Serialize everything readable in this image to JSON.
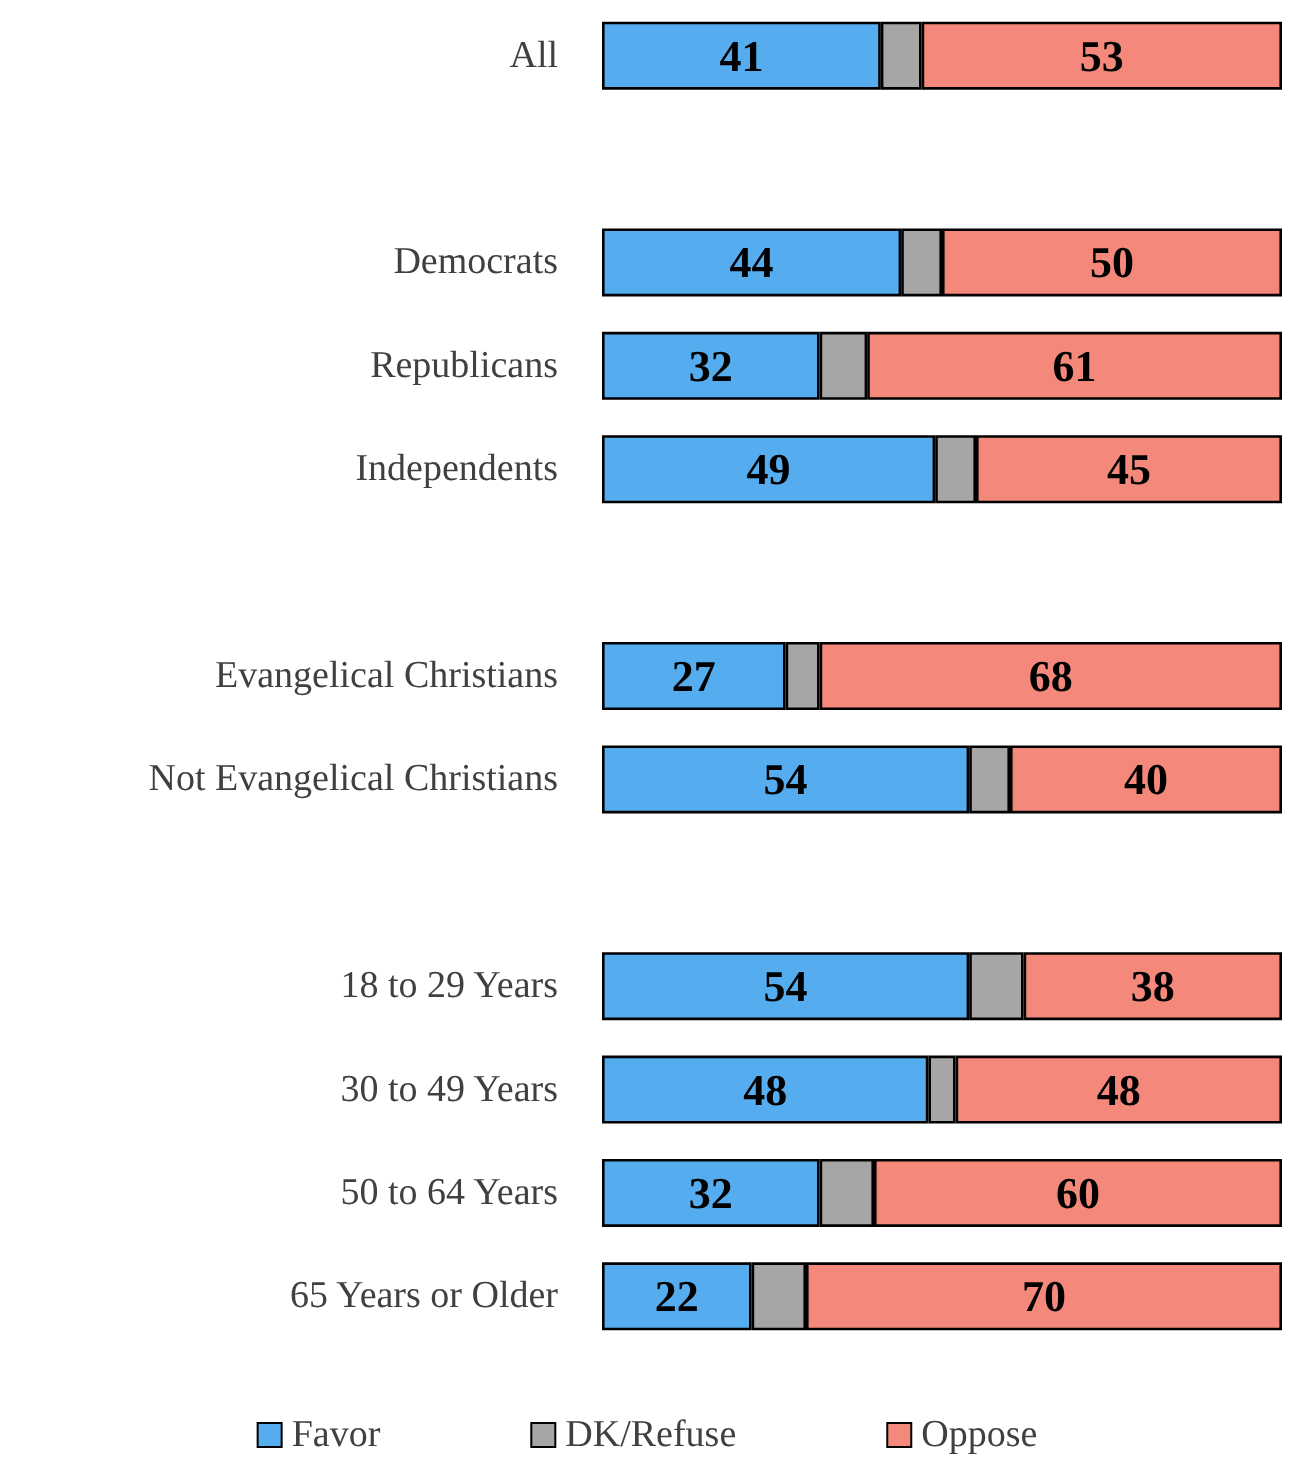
{
  "chart_data": {
    "type": "bar",
    "orientation": "horizontal",
    "stacked": true,
    "legend": "bottom",
    "categories": [
      "All",
      null,
      "Democrats",
      "Republicans",
      "Independents",
      null,
      "Evangelical Christians",
      "Not Evangelical Christians",
      null,
      "18 to 29 Years",
      "30 to 49 Years",
      "50 to 64 Years",
      "65 Years or Older"
    ],
    "series": [
      {
        "name": "Favor",
        "color": "#55acee",
        "values": [
          41,
          null,
          44,
          32,
          49,
          null,
          27,
          54,
          null,
          54,
          48,
          32,
          22
        ],
        "value_labels": [
          "41",
          null,
          "44",
          "32",
          "49",
          null,
          "27",
          "54",
          null,
          "54",
          "48",
          "32",
          "22"
        ]
      },
      {
        "name": "DK/Refuse",
        "color": "#a6a6a6",
        "values": [
          6,
          null,
          6,
          7,
          6,
          null,
          5,
          6,
          null,
          8,
          4,
          8,
          8
        ],
        "value_labels": [
          null,
          null,
          null,
          null,
          null,
          null,
          null,
          null,
          null,
          null,
          null,
          null,
          null
        ]
      },
      {
        "name": "Oppose",
        "color": "#f4897b",
        "values": [
          53,
          null,
          50,
          61,
          45,
          null,
          68,
          40,
          null,
          38,
          48,
          60,
          70
        ],
        "value_labels": [
          "53",
          null,
          "50",
          "61",
          "45",
          null,
          "68",
          "40",
          null,
          "38",
          "48",
          "60",
          "70"
        ]
      }
    ]
  }
}
